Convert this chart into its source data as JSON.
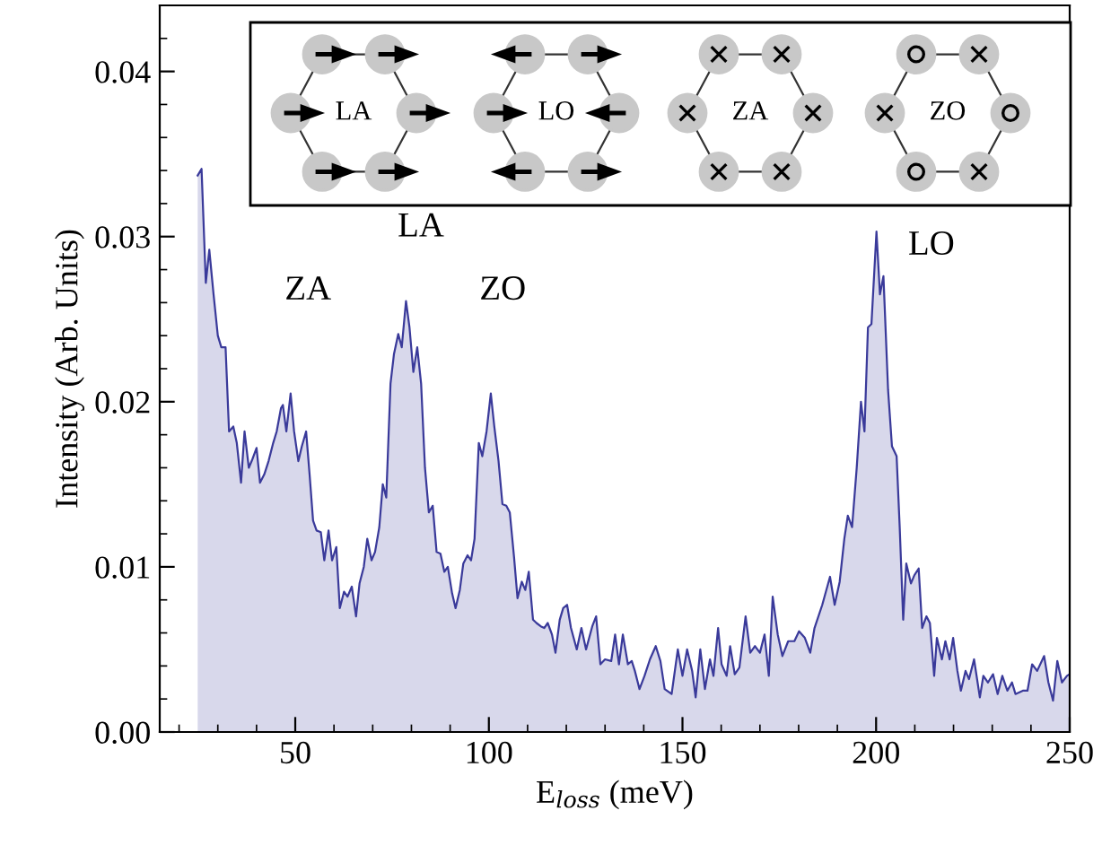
{
  "chart_data": {
    "type": "area",
    "xlabel": "E$_{loss}$ (meV)",
    "ylabel": "Intensity (Arb. Units)",
    "xlim": [
      15,
      250
    ],
    "ylim": [
      0,
      0.044
    ],
    "xticks": [
      50,
      100,
      150,
      200,
      250
    ],
    "yticks": [
      {
        "value": 0,
        "label": "0.00"
      },
      {
        "value": 0.01,
        "label": "0.01"
      },
      {
        "value": 0.02,
        "label": "0.02"
      },
      {
        "value": 0.03,
        "label": "0.03"
      },
      {
        "value": 0.04,
        "label": "0.04"
      }
    ],
    "grid": false,
    "legend": false,
    "series": [
      {
        "color": "#3a3a9a",
        "x": [
          24.8,
          25.8,
          26.9,
          27.8,
          28.9,
          30.0,
          30.9,
          32.0,
          32.9,
          34.0,
          34.9,
          36.0,
          36.9,
          38.0,
          38.9,
          40.0,
          40.9,
          42.0,
          43.1,
          44.3,
          45.2,
          46.3,
          46.8,
          47.7,
          48.8,
          49.7,
          50.8,
          51.7,
          52.8,
          53.7,
          54.6,
          55.5,
          56.6,
          57.5,
          58.6,
          59.5,
          60.6,
          61.5,
          62.6,
          63.5,
          64.6,
          65.7,
          66.6,
          67.7,
          68.6,
          69.7,
          70.6,
          71.7,
          72.6,
          73.5,
          74.6,
          75.5,
          76.6,
          77.5,
          78.6,
          79.5,
          80.5,
          81.5,
          82.5,
          83.5,
          84.5,
          85.5,
          86.5,
          87.5,
          88.5,
          89.4,
          90.5,
          91.4,
          92.5,
          93.4,
          94.5,
          95.4,
          96.3,
          97.4,
          98.3,
          99.4,
          100.5,
          101.4,
          102.5,
          103.5,
          104.5,
          105.4,
          106.5,
          107.4,
          108.5,
          109.4,
          110.3,
          111.4,
          112.3,
          113.4,
          114.3,
          115.2,
          116.3,
          117.2,
          118.3,
          119.2,
          120.2,
          121.2,
          122.7,
          123.9,
          125.1,
          126.7,
          127.7,
          128.8,
          130.0,
          131.6,
          132.6,
          133.6,
          134.6,
          135.9,
          136.9,
          137.7,
          138.9,
          140.2,
          141.6,
          143.1,
          144.3,
          145.4,
          147.2,
          148.8,
          150.0,
          151.2,
          152.5,
          153.4,
          154.6,
          155.8,
          157.1,
          158.0,
          159.2,
          160.1,
          161.4,
          162.3,
          163.5,
          164.7,
          166.3,
          167.5,
          168.7,
          170.0,
          171.2,
          172.3,
          173.3,
          174.6,
          175.8,
          177.3,
          178.9,
          180.1,
          181.6,
          183.0,
          184.1,
          186.1,
          188.1,
          189.3,
          190.6,
          191.8,
          192.7,
          193.8,
          195.0,
          196.1,
          197.0,
          197.9,
          198.8,
          200.1,
          201.0,
          201.9,
          203.1,
          204.1,
          205.3,
          206.1,
          207.0,
          207.8,
          209.0,
          209.9,
          211.0,
          211.9,
          213.0,
          213.9,
          215.0,
          215.7,
          217.0,
          217.9,
          219.0,
          219.9,
          221.0,
          221.9,
          223.1,
          224.0,
          225.3,
          226.8,
          227.7,
          228.9,
          230.2,
          231.4,
          232.6,
          233.9,
          235.1,
          236.0,
          237.9,
          239.1,
          240.3,
          241.6,
          243.4,
          244.5,
          245.7,
          246.8,
          248.0,
          249.3,
          250.0
        ],
        "values": [
          0.0337,
          0.0341,
          0.0272,
          0.0292,
          0.0265,
          0.024,
          0.0233,
          0.0233,
          0.0182,
          0.0185,
          0.0175,
          0.0151,
          0.0182,
          0.016,
          0.0165,
          0.0172,
          0.0151,
          0.0156,
          0.0164,
          0.0175,
          0.0182,
          0.0196,
          0.0198,
          0.0182,
          0.0205,
          0.0182,
          0.0164,
          0.0173,
          0.0182,
          0.0156,
          0.0128,
          0.0122,
          0.0121,
          0.0104,
          0.0122,
          0.0104,
          0.0112,
          0.0075,
          0.0085,
          0.0082,
          0.0088,
          0.007,
          0.009,
          0.01,
          0.0117,
          0.0104,
          0.0109,
          0.0124,
          0.015,
          0.0142,
          0.0211,
          0.0229,
          0.0241,
          0.0233,
          0.0261,
          0.0245,
          0.0218,
          0.0233,
          0.0211,
          0.016,
          0.0133,
          0.0137,
          0.0109,
          0.0108,
          0.0097,
          0.01,
          0.0084,
          0.0075,
          0.0086,
          0.0102,
          0.0107,
          0.0104,
          0.0117,
          0.0175,
          0.0167,
          0.0182,
          0.0205,
          0.0185,
          0.0164,
          0.0138,
          0.0137,
          0.0133,
          0.0106,
          0.0081,
          0.0091,
          0.0086,
          0.0097,
          0.0068,
          0.0066,
          0.0064,
          0.0063,
          0.0066,
          0.0059,
          0.0048,
          0.0068,
          0.0075,
          0.0077,
          0.0063,
          0.005,
          0.0063,
          0.005,
          0.0064,
          0.007,
          0.0041,
          0.0044,
          0.0043,
          0.0059,
          0.0041,
          0.0059,
          0.0041,
          0.0043,
          0.0037,
          0.0026,
          0.0034,
          0.0044,
          0.0052,
          0.0043,
          0.0026,
          0.0023,
          0.005,
          0.0034,
          0.005,
          0.0037,
          0.0021,
          0.005,
          0.0026,
          0.0044,
          0.0034,
          0.0063,
          0.0041,
          0.0034,
          0.0052,
          0.0035,
          0.0039,
          0.007,
          0.0048,
          0.0052,
          0.0048,
          0.0059,
          0.0034,
          0.0082,
          0.0059,
          0.0046,
          0.0055,
          0.0055,
          0.0061,
          0.0057,
          0.0048,
          0.0063,
          0.0077,
          0.0094,
          0.0077,
          0.0091,
          0.0117,
          0.0131,
          0.0124,
          0.016,
          0.02,
          0.0182,
          0.0245,
          0.0247,
          0.0303,
          0.0265,
          0.0276,
          0.0207,
          0.0173,
          0.0167,
          0.0124,
          0.0068,
          0.0102,
          0.009,
          0.0095,
          0.0099,
          0.0063,
          0.007,
          0.0066,
          0.0034,
          0.0057,
          0.0044,
          0.0055,
          0.0044,
          0.0057,
          0.0037,
          0.0025,
          0.0037,
          0.0032,
          0.0044,
          0.0021,
          0.0034,
          0.003,
          0.0035,
          0.0023,
          0.0034,
          0.0025,
          0.003,
          0.0023,
          0.0025,
          0.0025,
          0.0041,
          0.0037,
          0.0046,
          0.003,
          0.0019,
          0.0043,
          0.003,
          0.0034,
          0.0035
        ]
      }
    ],
    "annotations": [
      "ZA",
      "LA",
      "ZO",
      "LO",
      "LA",
      "LO",
      "ZA",
      "ZO"
    ]
  }
}
